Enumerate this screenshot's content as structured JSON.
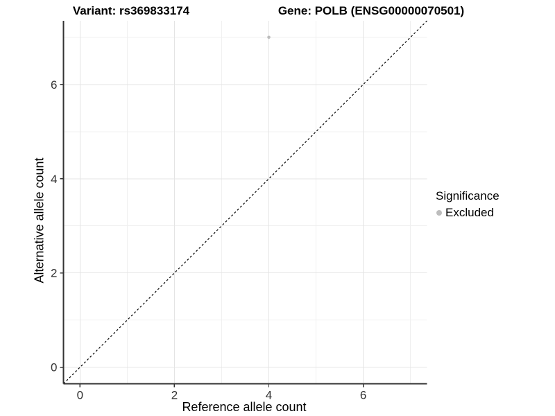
{
  "header": {
    "variant_title": "Variant: rs369833174",
    "gene_title": "Gene: POLB (ENSG00000070501)"
  },
  "legend": {
    "title": "Significance",
    "items": [
      {
        "label": "Excluded",
        "color": "#bdbdbd",
        "marker": "circle-icon"
      }
    ],
    "position": "right"
  },
  "chart_data": {
    "type": "scatter",
    "title": "Variant: rs369833174 | Gene: POLB (ENSG00000070501)",
    "xlabel": "Reference allele count",
    "ylabel": "Alternative allele count",
    "xlim": [
      -0.35,
      7.35
    ],
    "ylim": [
      -0.35,
      7.35
    ],
    "x_major_ticks": [
      0,
      2,
      4,
      6
    ],
    "y_major_ticks": [
      0,
      2,
      4,
      6
    ],
    "x_minor_ticks": [
      1,
      3,
      5,
      7
    ],
    "y_minor_ticks": [
      1,
      3,
      5,
      7
    ],
    "grid": true,
    "legend_position": "right",
    "series": [
      {
        "name": "Excluded",
        "color": "#bdbdbd",
        "points": [
          {
            "x": 4,
            "y": 7
          }
        ]
      }
    ],
    "reference_line": {
      "type": "identity",
      "slope": 1,
      "intercept": 0,
      "style": "dashed",
      "color": "#000000"
    },
    "colors": {
      "grid_major": "#e4e4e4",
      "grid_minor": "#f0f0f0",
      "axis_line": "#333333",
      "tick_label": "#333333"
    }
  }
}
